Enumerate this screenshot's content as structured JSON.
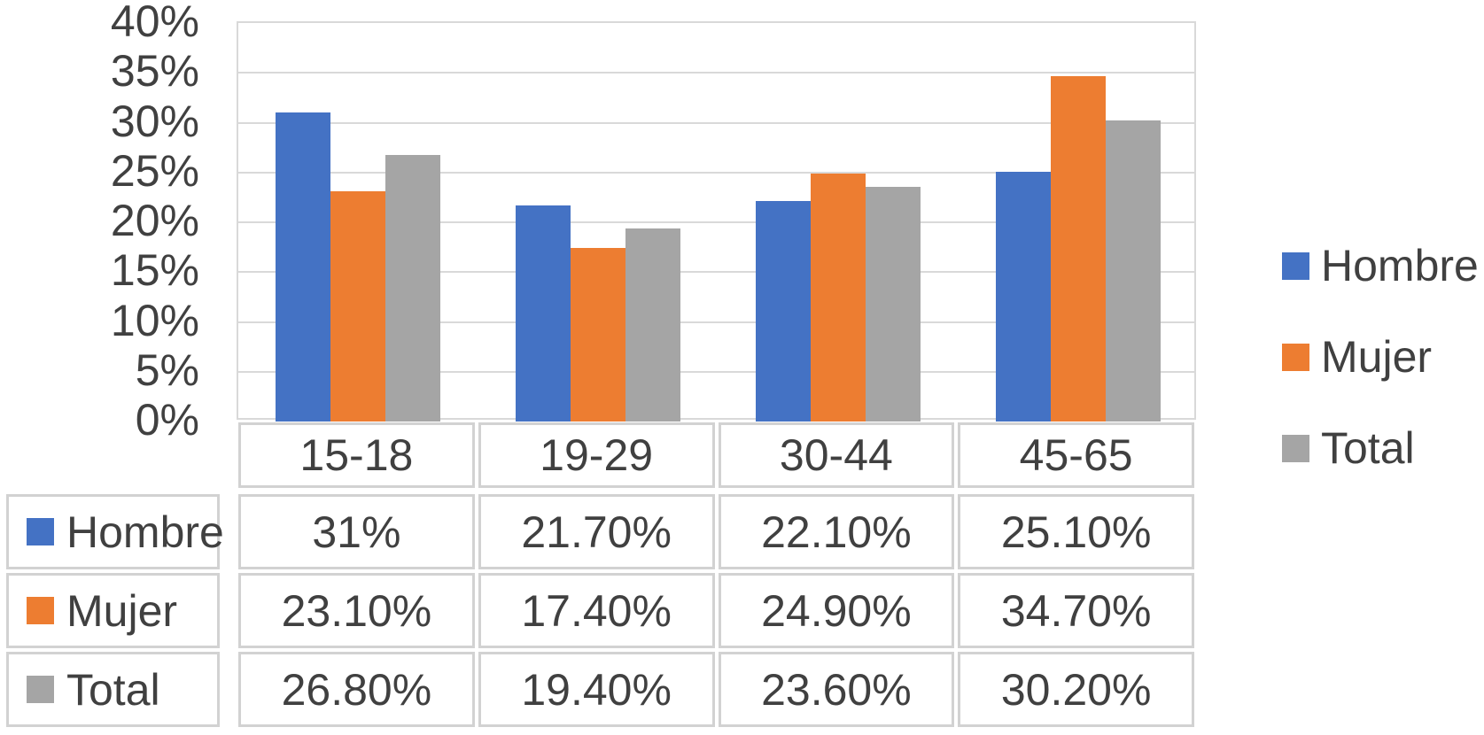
{
  "chart_data": {
    "type": "bar",
    "title": "",
    "categories": [
      "15-18",
      "19-29",
      "30-44",
      "45-65"
    ],
    "series": [
      {
        "name": "Hombre",
        "color": "#4472C4",
        "values": [
          31,
          21.7,
          22.1,
          25.1
        ],
        "value_labels": [
          "31%",
          "21.70%",
          "22.10%",
          "25.10%"
        ]
      },
      {
        "name": "Mujer",
        "color": "#ED7D31",
        "values": [
          23.1,
          17.4,
          24.9,
          34.7
        ],
        "value_labels": [
          "23.10%",
          "17.40%",
          "24.90%",
          "34.70%"
        ]
      },
      {
        "name": "Total",
        "color": "#A5A5A5",
        "values": [
          26.8,
          19.4,
          23.6,
          30.2
        ],
        "value_labels": [
          "26.80%",
          "19.40%",
          "23.60%",
          "30.20%"
        ]
      }
    ],
    "y_axis": {
      "min": 0,
      "max": 40,
      "step": 5,
      "unit": "%",
      "tick_labels": [
        "40%",
        "35%",
        "30%",
        "25%",
        "20%",
        "15%",
        "10%",
        "5%",
        "0%"
      ]
    },
    "legend": {
      "position": "right",
      "entries": [
        "Hombre",
        "Mujer",
        "Total"
      ]
    },
    "grid": true,
    "data_table_shown": true,
    "styles": {
      "text_color": "#404040",
      "grid_color": "#D9D9D9",
      "table_border_color": "#D2D2D2",
      "background": "#FFFFFF"
    }
  }
}
